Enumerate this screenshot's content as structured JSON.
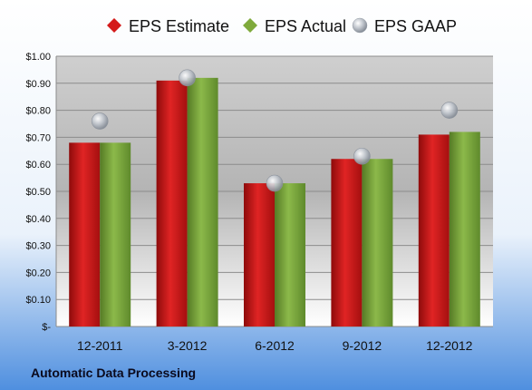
{
  "chart_data": {
    "type": "bar",
    "categories": [
      "12-2011",
      "3-2012",
      "6-2012",
      "9-2012",
      "12-2012"
    ],
    "series": [
      {
        "name": "EPS Estimate",
        "type": "bar",
        "values": [
          0.68,
          0.91,
          0.53,
          0.62,
          0.71
        ]
      },
      {
        "name": "EPS Actual",
        "type": "bar",
        "values": [
          0.68,
          0.92,
          0.53,
          0.62,
          0.72
        ]
      },
      {
        "name": "EPS GAAP",
        "type": "scatter",
        "values": [
          0.76,
          0.92,
          0.53,
          0.63,
          0.8
        ]
      }
    ],
    "y_ticks": [
      {
        "value": 0.0,
        "label": "$-"
      },
      {
        "value": 0.1,
        "label": "$0.10"
      },
      {
        "value": 0.2,
        "label": "$0.20"
      },
      {
        "value": 0.3,
        "label": "$0.30"
      },
      {
        "value": 0.4,
        "label": "$0.40"
      },
      {
        "value": 0.5,
        "label": "$0.50"
      },
      {
        "value": 0.6,
        "label": "$0.60"
      },
      {
        "value": 0.7,
        "label": "$0.70"
      },
      {
        "value": 0.8,
        "label": "$0.80"
      },
      {
        "value": 0.9,
        "label": "$0.90"
      },
      {
        "value": 1.0,
        "label": "$1.00"
      }
    ],
    "ylim": [
      0,
      1.0
    ],
    "grid": true,
    "legend_position": "top",
    "company_label": "Automatic Data Processing",
    "colors": {
      "estimate": "#d41a1a",
      "actual": "#7faa3c",
      "gaap": "#a8b0bc"
    }
  }
}
